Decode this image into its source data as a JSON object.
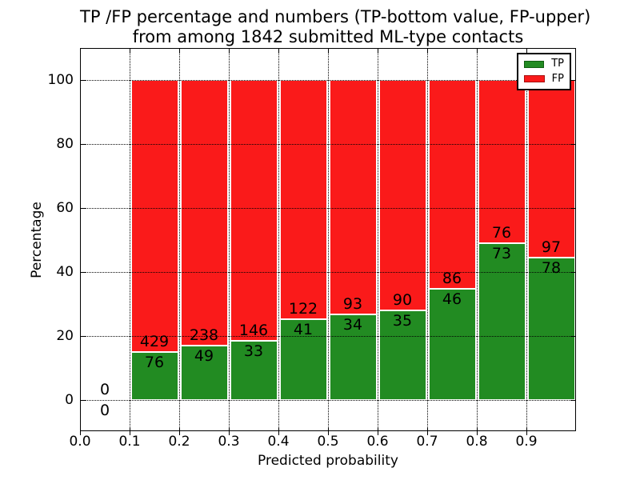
{
  "chart_data": {
    "type": "bar",
    "stacked": true,
    "normalized_to_percent": true,
    "title_line1": "TP /FP percentage and numbers (TP-bottom value, FP-upper)",
    "title_line2": "from among 1842 submitted ML-type contacts",
    "xlabel": "Predicted probability",
    "ylabel": "Percentage",
    "total_submitted": 1842,
    "bin_edges": [
      0.0,
      0.1,
      0.2,
      0.3,
      0.4,
      0.5,
      0.6,
      0.7,
      0.8,
      0.9,
      1.0
    ],
    "categories": [
      "0.0-0.1",
      "0.1-0.2",
      "0.2-0.3",
      "0.3-0.4",
      "0.4-0.5",
      "0.5-0.6",
      "0.6-0.7",
      "0.7-0.8",
      "0.8-0.9",
      "0.9-1.0"
    ],
    "series": [
      {
        "name": "TP",
        "color": "#228b22",
        "values": [
          0,
          76,
          49,
          33,
          41,
          34,
          35,
          46,
          73,
          78
        ]
      },
      {
        "name": "FP",
        "color": "#fa1a1a",
        "values": [
          0,
          429,
          238,
          146,
          122,
          93,
          90,
          86,
          76,
          97
        ]
      }
    ],
    "tp_percent_of_bin": [
      0,
      15.0,
      17.1,
      18.4,
      25.2,
      26.8,
      28.0,
      34.8,
      49.0,
      44.6
    ],
    "xticks": [
      "0.0",
      "0.1",
      "0.2",
      "0.3",
      "0.4",
      "0.5",
      "0.6",
      "0.7",
      "0.8",
      "0.9"
    ],
    "yticks": [
      0,
      20,
      40,
      60,
      80,
      100
    ],
    "xlim": [
      0.0,
      1.0
    ],
    "ylim": [
      -10,
      110
    ],
    "grid": true,
    "grid_style": "dotted",
    "legend_position": "upper right",
    "legend": {
      "entries": [
        {
          "label": "TP",
          "color": "#228b22"
        },
        {
          "label": "FP",
          "color": "#fa1a1a"
        }
      ]
    }
  }
}
